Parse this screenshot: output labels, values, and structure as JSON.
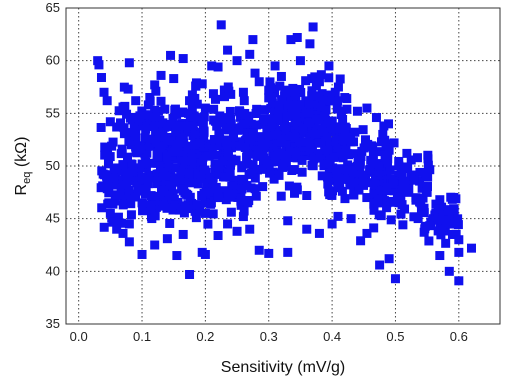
{
  "chart_data": {
    "type": "scatter",
    "title": "",
    "xlabel": "Sensitivity (mV/g)",
    "ylabel_main": "R",
    "ylabel_sub": "eq",
    "ylabel_unit": " (kΩ)",
    "xlim": [
      -0.02,
      0.665
    ],
    "ylim": [
      35,
      65
    ],
    "x_ticks": [
      0.0,
      0.1,
      0.2,
      0.3,
      0.4,
      0.5,
      0.6
    ],
    "x_tick_labels": [
      "0.0",
      "0.1",
      "0.2",
      "0.3",
      "0.4",
      "0.5",
      "0.6"
    ],
    "y_ticks": [
      35,
      40,
      45,
      50,
      55,
      60,
      65
    ],
    "y_tick_labels": [
      "35",
      "40",
      "45",
      "50",
      "55",
      "60",
      "65"
    ],
    "grid": true,
    "legend": "none",
    "marker": "square",
    "marker_color": "#1010ee",
    "points": [
      [
        0.03,
        60
      ],
      [
        0.032,
        59.6
      ],
      [
        0.036,
        58.4
      ],
      [
        0.04,
        57
      ],
      [
        0.045,
        56.2
      ],
      [
        0.05,
        54.2
      ],
      [
        0.06,
        53.7
      ],
      [
        0.07,
        55.6
      ],
      [
        0.078,
        57.3
      ],
      [
        0.08,
        59.8
      ],
      [
        0.095,
        51.6
      ],
      [
        0.12,
        57.7
      ],
      [
        0.13,
        58.6
      ],
      [
        0.145,
        60.5
      ],
      [
        0.165,
        60.2
      ],
      [
        0.175,
        56.2
      ],
      [
        0.185,
        57.6
      ],
      [
        0.195,
        57.8
      ],
      [
        0.21,
        59.5
      ],
      [
        0.22,
        59.4
      ],
      [
        0.225,
        63.4
      ],
      [
        0.235,
        61.0
      ],
      [
        0.25,
        60.0
      ],
      [
        0.27,
        60.6
      ],
      [
        0.275,
        62.0
      ],
      [
        0.3,
        57.2
      ],
      [
        0.31,
        59.5
      ],
      [
        0.335,
        62.0
      ],
      [
        0.345,
        62.2
      ],
      [
        0.365,
        61.6
      ],
      [
        0.37,
        63.2
      ],
      [
        0.395,
        59.5
      ],
      [
        0.405,
        57.0
      ],
      [
        0.41,
        57.5
      ],
      [
        0.44,
        55.2
      ],
      [
        0.455,
        55.5
      ],
      [
        0.47,
        54.6
      ],
      [
        0.48,
        53.0
      ],
      [
        0.49,
        51.5
      ],
      [
        0.52,
        47.5
      ],
      [
        0.54,
        46.5
      ],
      [
        0.55,
        47.5
      ],
      [
        0.57,
        46.8
      ],
      [
        0.58,
        44.5
      ],
      [
        0.59,
        43.5
      ],
      [
        0.6,
        43.0
      ],
      [
        0.62,
        42.2
      ],
      [
        0.6,
        41.8
      ],
      [
        0.6,
        39.1
      ],
      [
        0.585,
        40.0
      ],
      [
        0.57,
        41.5
      ],
      [
        0.5,
        39.3
      ],
      [
        0.49,
        41.2
      ],
      [
        0.475,
        40.6
      ],
      [
        0.455,
        43.6
      ],
      [
        0.445,
        42.9
      ],
      [
        0.4,
        44.5
      ],
      [
        0.38,
        43.6
      ],
      [
        0.36,
        44.0
      ],
      [
        0.33,
        41.8
      ],
      [
        0.3,
        41.7
      ],
      [
        0.285,
        42.0
      ],
      [
        0.27,
        44.0
      ],
      [
        0.25,
        43.8
      ],
      [
        0.235,
        44.5
      ],
      [
        0.22,
        43.4
      ],
      [
        0.2,
        41.6
      ],
      [
        0.195,
        41.8
      ],
      [
        0.175,
        39.7
      ],
      [
        0.165,
        43.5
      ],
      [
        0.155,
        41.5
      ],
      [
        0.14,
        43.1
      ],
      [
        0.12,
        42.5
      ],
      [
        0.1,
        41.6
      ],
      [
        0.08,
        42.8
      ],
      [
        0.07,
        43.6
      ],
      [
        0.06,
        44.0
      ],
      [
        0.1,
        46.5
      ],
      [
        0.1,
        48.8
      ],
      [
        0.14,
        46.0
      ],
      [
        0.2,
        45.5
      ],
      [
        0.33,
        44.8
      ],
      [
        0.43,
        45.0
      ],
      [
        0.05,
        45.5
      ],
      [
        0.08,
        44.5
      ],
      [
        0.22,
        47.0
      ],
      [
        0.36,
        47.2
      ],
      [
        0.26,
        45.2
      ],
      [
        0.15,
        58.3
      ],
      [
        0.26,
        57.0
      ],
      [
        0.32,
        58.5
      ],
      [
        0.38,
        58.0
      ],
      [
        0.42,
        56.5
      ],
      [
        0.09,
        56.2
      ],
      [
        0.11,
        55.8
      ],
      [
        0.2,
        55.5
      ],
      [
        0.24,
        56.8
      ],
      [
        0.35,
        60.0
      ],
      [
        0.285,
        58.0
      ]
    ],
    "dense_cloud": [
      [
        0.09,
        49.0,
        0.055,
        4.0,
        150
      ],
      [
        0.18,
        51.5,
        0.06,
        3.6,
        190
      ],
      [
        0.29,
        52.0,
        0.06,
        3.4,
        190
      ],
      [
        0.37,
        52.5,
        0.055,
        3.3,
        170
      ],
      [
        0.44,
        50.0,
        0.05,
        3.0,
        130
      ],
      [
        0.51,
        48.0,
        0.045,
        2.5,
        100
      ],
      [
        0.57,
        45.0,
        0.03,
        1.8,
        50
      ],
      [
        0.35,
        55.5,
        0.05,
        2.2,
        90
      ],
      [
        0.2,
        48.0,
        0.07,
        2.5,
        110
      ],
      [
        0.13,
        53.5,
        0.06,
        2.8,
        100
      ]
    ]
  }
}
